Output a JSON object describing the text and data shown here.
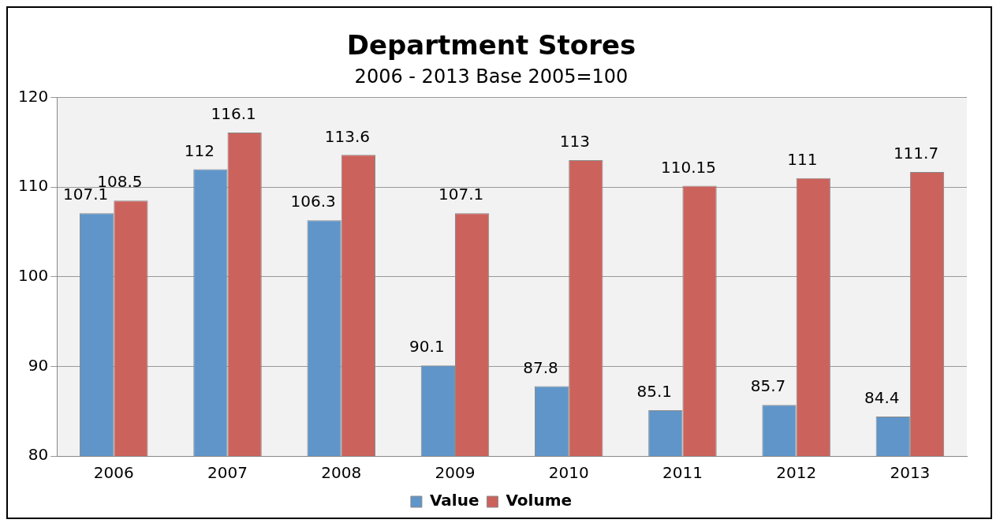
{
  "chart_data": {
    "type": "bar",
    "title": "Department Stores",
    "subtitle": "2006 - 2013 Base 2005=100",
    "categories": [
      "2006",
      "2007",
      "2008",
      "2009",
      "2010",
      "2011",
      "2012",
      "2013"
    ],
    "series": [
      {
        "name": "Value",
        "color": "#5f95c9",
        "values": [
          107.1,
          112,
          106.3,
          90.1,
          87.8,
          85.1,
          85.7,
          84.4
        ]
      },
      {
        "name": "Volume",
        "color": "#cc625c",
        "values": [
          108.5,
          116.1,
          113.6,
          107.1,
          113,
          110.15,
          111,
          111.7
        ]
      }
    ],
    "ylim": [
      80,
      120
    ],
    "yticks": [
      80,
      90,
      100,
      110,
      120
    ],
    "grid": "y",
    "legend": "bottom",
    "data_labels": true
  }
}
